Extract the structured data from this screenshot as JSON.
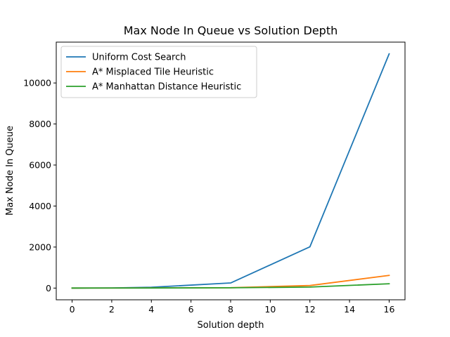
{
  "chart_data": {
    "type": "line",
    "title": "Max Node In Queue vs Solution Depth",
    "xlabel": "Solution depth",
    "ylabel": "Max Node In Queue",
    "x": [
      0,
      2,
      4,
      8,
      12,
      16
    ],
    "xlim": [
      -0.8,
      16.8
    ],
    "ylim": [
      -571,
      11991
    ],
    "xticks": [
      0,
      2,
      4,
      6,
      8,
      10,
      12,
      14,
      16
    ],
    "yticks": [
      0,
      2000,
      4000,
      6000,
      8000,
      10000
    ],
    "grid": false,
    "legend_position": "top-left",
    "series": [
      {
        "name": "Uniform Cost Search",
        "color": "#1f77b4",
        "values": [
          1,
          6,
          40,
          250,
          2010,
          11420
        ]
      },
      {
        "name": "A* Misplaced Tile Heuristic",
        "color": "#ff7f0e",
        "values": [
          1,
          3,
          6,
          18,
          125,
          620
        ]
      },
      {
        "name": "A* Manhattan Distance Heuristic",
        "color": "#2ca02c",
        "values": [
          1,
          3,
          5,
          14,
          50,
          210
        ]
      }
    ]
  }
}
